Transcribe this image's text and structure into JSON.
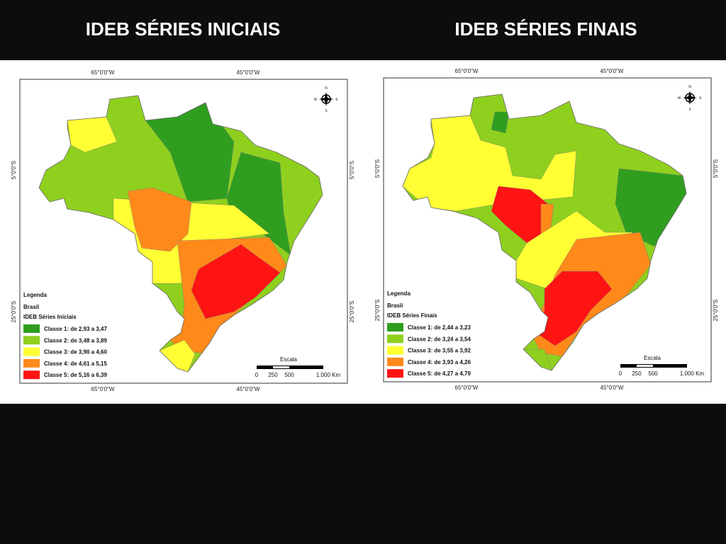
{
  "titles": [
    "IDEB SÉRIES INICIAIS",
    "IDEB SÉRIES FINAIS"
  ],
  "maps": [
    {
      "coords_top": [
        "65°0'0\"W",
        "45°0'0\"W"
      ],
      "coords_side": [
        "5°0'0\"S",
        "25°0'0\"S"
      ],
      "legend": {
        "heading": "Legenda",
        "layer": "Brasil",
        "subtitle": "IDEB Séries Iniciais",
        "classes": [
          "Classe 1: de 2,93 a 3,47",
          "Classe 2: de 3,48 a 3,89",
          "Classe 3: de 3,90 a 4,60",
          "Classe 4: de 4,61 a 5,15",
          "Classe 5: de 5,16 a 6,39"
        ]
      },
      "scale": {
        "title": "Escala",
        "labels": [
          "0",
          "250",
          "500",
          "1.000 Km"
        ]
      },
      "compass": [
        "N",
        "E",
        "S",
        "W"
      ]
    },
    {
      "coords_top": [
        "65°0'0\"W",
        "45°0'0\"W"
      ],
      "coords_side": [
        "5°0'0\"S",
        "25°0'0\"S"
      ],
      "legend": {
        "heading": "Legenda",
        "layer": "Brasil",
        "subtitle": "IDEB Séries Finais",
        "classes": [
          "Classe 1: de 2,44 a 3,23",
          "Classe 2: de 3,24 a 3,54",
          "Classe 3: de 3,55 a 3,92",
          "Classe 4: de 3,93 a 4,26",
          "Classe 5: de 4,27 a 4,79"
        ]
      },
      "scale": {
        "title": "Escala",
        "labels": [
          "0",
          "250",
          "500",
          "1.000 Km"
        ]
      },
      "compass": [
        "N",
        "E",
        "S",
        "W"
      ]
    }
  ]
}
